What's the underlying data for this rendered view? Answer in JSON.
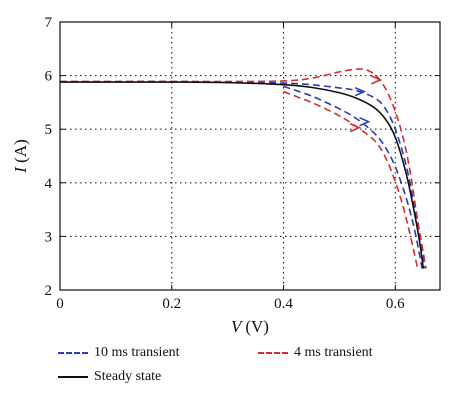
{
  "chart_data": {
    "type": "line",
    "xlabel": "V (V)",
    "ylabel": "I (A)",
    "xlabel_var": "V",
    "xlabel_unit": "(V)",
    "ylabel_var": "I",
    "ylabel_unit": "(A)",
    "xlim": [
      0,
      0.68
    ],
    "ylim": [
      2,
      7
    ],
    "xticks": [
      0,
      0.2,
      0.4,
      0.6
    ],
    "xtick_labels": [
      "0",
      "0.2",
      "0.4",
      "0.6"
    ],
    "yticks": [
      2,
      3,
      4,
      5,
      6,
      7
    ],
    "ytick_labels": [
      "2",
      "3",
      "4",
      "5",
      "6",
      "7"
    ],
    "grid": true,
    "grid_style": "dotted",
    "legend_position": "bottom",
    "series": [
      {
        "name": "10 ms transient",
        "color": "#2b3bbf",
        "style": "dashed",
        "branches": [
          {
            "x": [
              0,
              0.1,
              0.2,
              0.3,
              0.4,
              0.45,
              0.5,
              0.53,
              0.56,
              0.58,
              0.6,
              0.62,
              0.635,
              0.645,
              0.652
            ],
            "y": [
              5.89,
              5.89,
              5.89,
              5.88,
              5.86,
              5.83,
              5.77,
              5.72,
              5.6,
              5.42,
              5.0,
              4.3,
              3.5,
              2.9,
              2.4
            ]
          },
          {
            "x": [
              0.4,
              0.45,
              0.5,
              0.53,
              0.56,
              0.58,
              0.6,
              0.62,
              0.635,
              0.648
            ],
            "y": [
              5.8,
              5.62,
              5.38,
              5.2,
              4.95,
              4.7,
              4.3,
              3.7,
              3.1,
              2.4
            ]
          }
        ]
      },
      {
        "name": "4 ms transient",
        "color": "#d32f2f",
        "style": "dashed",
        "branches": [
          {
            "x": [
              0,
              0.1,
              0.2,
              0.3,
              0.4,
              0.45,
              0.5,
              0.53,
              0.55,
              0.57,
              0.59,
              0.61,
              0.625,
              0.64,
              0.65,
              0.655
            ],
            "y": [
              5.89,
              5.89,
              5.89,
              5.89,
              5.9,
              5.95,
              6.07,
              6.12,
              6.1,
              5.95,
              5.6,
              5.0,
              4.3,
              3.3,
              2.7,
              2.4
            ]
          },
          {
            "x": [
              0.4,
              0.45,
              0.5,
              0.53,
              0.55,
              0.57,
              0.59,
              0.61,
              0.625,
              0.64
            ],
            "y": [
              5.7,
              5.5,
              5.25,
              5.05,
              4.9,
              4.7,
              4.3,
              3.7,
              3.1,
              2.4
            ]
          }
        ]
      },
      {
        "name": "Steady state",
        "color": "#111111",
        "style": "solid",
        "branches": [
          {
            "x": [
              0,
              0.1,
              0.2,
              0.3,
              0.4,
              0.45,
              0.5,
              0.53,
              0.56,
              0.58,
              0.6,
              0.62,
              0.635,
              0.645,
              0.65
            ],
            "y": [
              5.88,
              5.88,
              5.88,
              5.87,
              5.83,
              5.78,
              5.68,
              5.58,
              5.42,
              5.22,
              4.85,
              4.15,
              3.4,
              2.8,
              2.4
            ]
          }
        ]
      }
    ],
    "arrows": [
      {
        "series": "10 ms transient",
        "x": 0.537,
        "y": 5.7,
        "dir": "right"
      },
      {
        "series": "10 ms transient",
        "x": 0.545,
        "y": 5.14,
        "dir": "right"
      },
      {
        "series": "4 ms transient",
        "x": 0.566,
        "y": 5.92,
        "dir": "right"
      },
      {
        "series": "4 ms transient",
        "x": 0.528,
        "y": 5.03,
        "dir": "right"
      }
    ]
  }
}
